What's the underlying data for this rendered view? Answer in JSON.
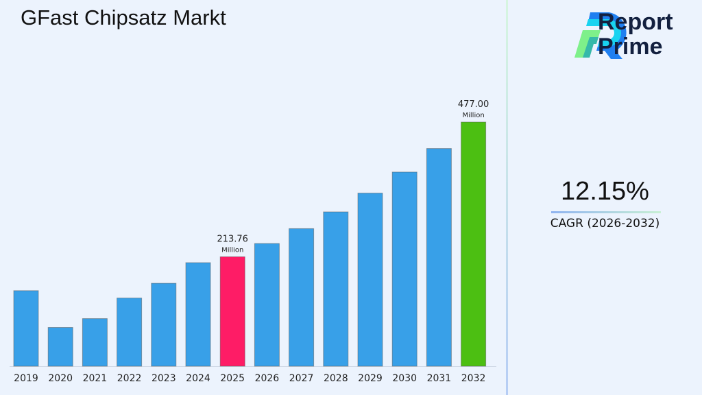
{
  "title": "GFast Chipsatz Markt",
  "logo": {
    "line1": "Report",
    "line2": "Prime"
  },
  "cagr": {
    "value": "12.15%",
    "label": "CAGR (2026-2032)"
  },
  "chart_data": {
    "type": "bar",
    "title": "GFast Chipsatz Markt",
    "categories": [
      "2019",
      "2020",
      "2021",
      "2022",
      "2023",
      "2024",
      "2025",
      "2026",
      "2027",
      "2028",
      "2029",
      "2030",
      "2031",
      "2032"
    ],
    "values": [
      147.6,
      75.7,
      93.0,
      133.2,
      162.0,
      202.3,
      213.76,
      239.7,
      268.8,
      301.5,
      338.2,
      379.3,
      425.3,
      477.0
    ],
    "unit": "Million",
    "data_labels": [
      {
        "index": 6,
        "value": "213.76",
        "unit": "Million"
      },
      {
        "index": 13,
        "value": "477.00",
        "unit": "Million"
      }
    ],
    "colors": {
      "default": "#38a0e8",
      "highlight_2025": "#fe1c66",
      "highlight_2032": "#4cbf12"
    },
    "ylim": [
      0,
      477
    ],
    "grid": false,
    "xlabel": "",
    "ylabel": ""
  }
}
